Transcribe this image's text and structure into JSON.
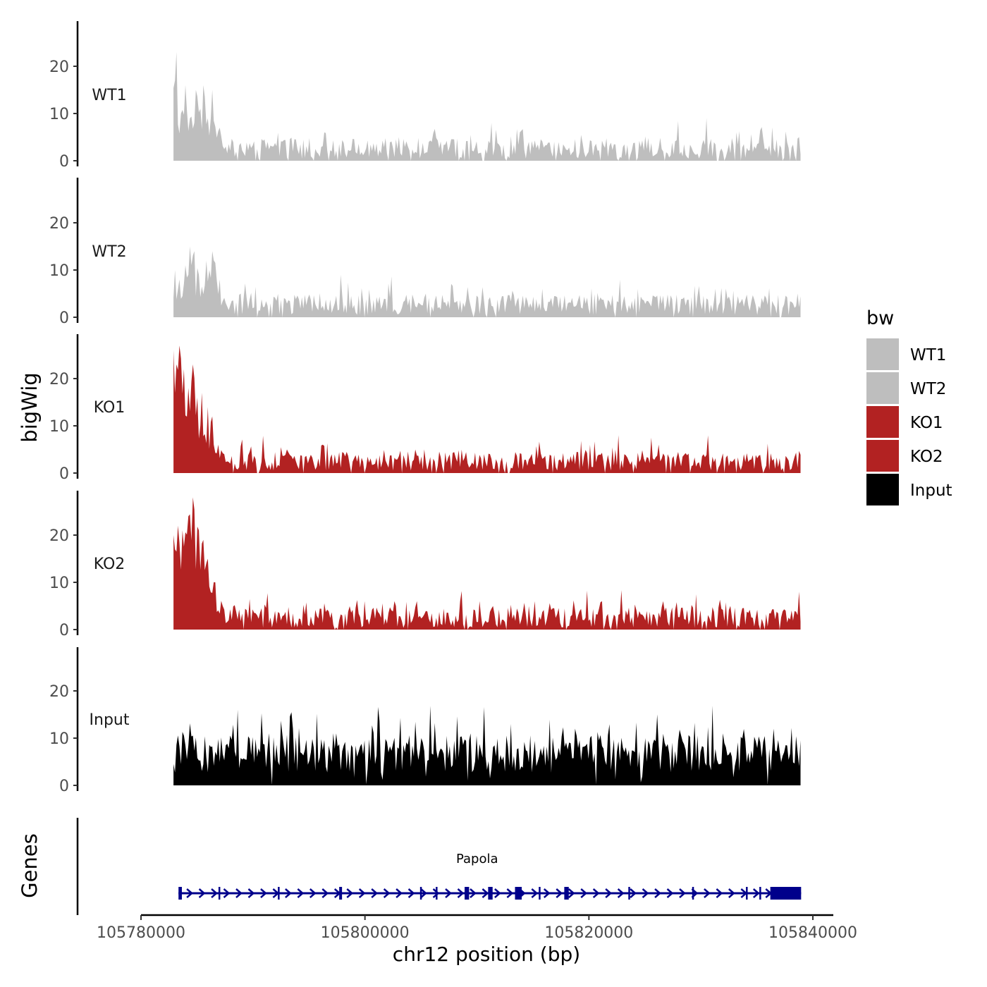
{
  "chart_data": {
    "type": "area",
    "title": "",
    "chromosome": "chr12",
    "xlabel": "chr12 position (bp)",
    "ylabel": "bigWig",
    "genes_label": "Genes",
    "xlim": [
      105778500,
      105842000
    ],
    "data_range": [
      105782900,
      105838900
    ],
    "xticks": [
      105780000,
      105800000,
      105820000,
      105840000
    ],
    "xtick_labels": [
      "105780000",
      "105800000",
      "105820000",
      "105840000"
    ],
    "ylim": [
      0,
      29
    ],
    "yticks": [
      0,
      10,
      20
    ],
    "ytick_labels": [
      "0",
      "10",
      "20"
    ],
    "legend": {
      "title": "bw",
      "position": "right",
      "entries": [
        {
          "label": "WT1",
          "color": "#BEBEBE"
        },
        {
          "label": "WT2",
          "color": "#BEBEBE"
        },
        {
          "label": "KO1",
          "color": "#B22222"
        },
        {
          "label": "KO2",
          "color": "#B22222"
        },
        {
          "label": "Input",
          "color": "#000000"
        }
      ]
    },
    "series": [
      {
        "name": "WT1",
        "color": "#BEBEBE",
        "baseline": 2.0,
        "spread": 2.2,
        "peak": 23,
        "early": [
          [
            105783000,
            17
          ],
          [
            105783200,
            23
          ],
          [
            105783600,
            10
          ],
          [
            105784000,
            16
          ],
          [
            105784400,
            9
          ],
          [
            105784900,
            15
          ],
          [
            105785300,
            11
          ],
          [
            105785600,
            16
          ],
          [
            105786000,
            9
          ],
          [
            105786400,
            15
          ],
          [
            105787000,
            7
          ],
          [
            105787600,
            3
          ]
        ],
        "spikes": [
          [
            105796400,
            6
          ],
          [
            105803000,
            5
          ],
          [
            105813800,
            6
          ],
          [
            105830500,
            9
          ],
          [
            105833200,
            6
          ],
          [
            105838800,
            5
          ]
        ]
      },
      {
        "name": "WT2",
        "color": "#BEBEBE",
        "baseline": 2.0,
        "spread": 2.2,
        "peak": 15,
        "early": [
          [
            105783000,
            10
          ],
          [
            105783500,
            8
          ],
          [
            105784000,
            11
          ],
          [
            105784400,
            15
          ],
          [
            105784800,
            14
          ],
          [
            105785200,
            9
          ],
          [
            105785800,
            12
          ],
          [
            105786400,
            14
          ],
          [
            105787000,
            8
          ],
          [
            105787600,
            3
          ]
        ],
        "spikes": [
          [
            105797800,
            9
          ],
          [
            105805400,
            5
          ],
          [
            105815800,
            6
          ],
          [
            105824400,
            6
          ],
          [
            105831300,
            6
          ],
          [
            105838600,
            5
          ]
        ]
      },
      {
        "name": "KO1",
        "color": "#B22222",
        "baseline": 1.9,
        "spread": 2.0,
        "peak": 27,
        "early": [
          [
            105782950,
            26
          ],
          [
            105783400,
            27
          ],
          [
            105783800,
            22
          ],
          [
            105784200,
            18
          ],
          [
            105784700,
            23
          ],
          [
            105785100,
            16
          ],
          [
            105785500,
            17
          ],
          [
            105786000,
            14
          ],
          [
            105786400,
            12
          ],
          [
            105786900,
            6
          ],
          [
            105787400,
            4
          ],
          [
            105788000,
            2
          ]
        ],
        "spikes": [
          [
            105793000,
            5
          ],
          [
            105796300,
            6
          ],
          [
            105805300,
            5
          ],
          [
            105811200,
            4
          ],
          [
            105822700,
            8
          ],
          [
            105826200,
            6
          ],
          [
            105836500,
            3
          ]
        ]
      },
      {
        "name": "KO2",
        "color": "#B22222",
        "baseline": 1.9,
        "spread": 2.2,
        "peak": 28,
        "early": [
          [
            105782950,
            20
          ],
          [
            105783300,
            22
          ],
          [
            105783700,
            21
          ],
          [
            105784300,
            24
          ],
          [
            105784700,
            28
          ],
          [
            105785200,
            21
          ],
          [
            105785600,
            19
          ],
          [
            105786000,
            15
          ],
          [
            105786700,
            10
          ],
          [
            105787300,
            5
          ],
          [
            105787900,
            2
          ]
        ],
        "spikes": [
          [
            105800000,
            6
          ],
          [
            105802600,
            6
          ],
          [
            105804600,
            6
          ],
          [
            105810300,
            6
          ],
          [
            105815200,
            6
          ],
          [
            105821200,
            6
          ],
          [
            105826600,
            6
          ],
          [
            105832600,
            5
          ],
          [
            105838800,
            8
          ]
        ]
      },
      {
        "name": "Input",
        "color": "#000000",
        "baseline": 5.5,
        "spread": 4.0,
        "peak": 16,
        "early": [],
        "spikes": [
          [
            105788600,
            16
          ],
          [
            105791500,
            11
          ],
          [
            105793600,
            12
          ],
          [
            105797500,
            11
          ],
          [
            105805000,
            10
          ],
          [
            105809500,
            11
          ],
          [
            105813000,
            13
          ],
          [
            105818800,
            12
          ],
          [
            105825000,
            10
          ],
          [
            105832000,
            11
          ],
          [
            105836500,
            12
          ]
        ]
      }
    ],
    "gene_track": {
      "name": "Papola",
      "strand": "+",
      "color": "#00008B",
      "start": 105783350,
      "end": 105838950,
      "exons": [
        [
          105783350,
          105783650
        ],
        [
          105797700,
          105797900
        ],
        [
          105808900,
          105809300
        ],
        [
          105811000,
          105811400
        ],
        [
          105813400,
          105814000
        ],
        [
          105817800,
          105818200
        ],
        [
          105836200,
          105838950
        ]
      ],
      "introns_marks": [
        105787000,
        105792300,
        105805000,
        105806400,
        105815600,
        105823600,
        105829300,
        105834100,
        105835300
      ]
    }
  }
}
